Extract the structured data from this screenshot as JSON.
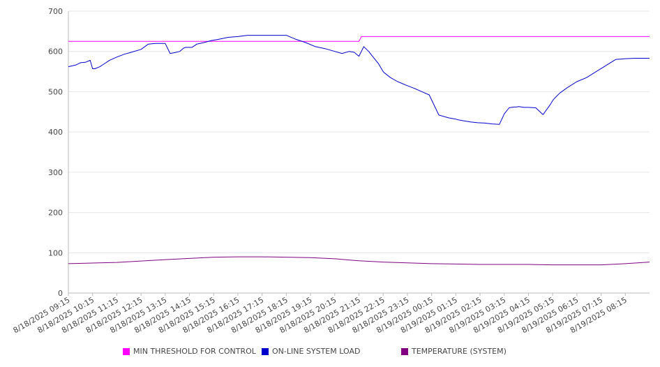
{
  "chart_data": {
    "type": "line",
    "title": "",
    "xlabel": "",
    "ylabel": "",
    "ylim": [
      0,
      700
    ],
    "y_ticks": [
      "0",
      "100",
      "200",
      "300",
      "400",
      "500",
      "600",
      "700"
    ],
    "grid": true,
    "legend_position": "bottom",
    "categories": [
      "8/18/2025 09:15",
      "8/18/2025 10:15",
      "8/18/2025 11:15",
      "8/18/2025 12:15",
      "8/18/2025 13:15",
      "8/18/2025 14:15",
      "8/18/2025 15:15",
      "8/18/2025 16:15",
      "8/18/2025 17:15",
      "8/18/2025 18:15",
      "8/18/2025 19:15",
      "8/18/2025 20:15",
      "8/18/2025 21:15",
      "8/18/2025 22:15",
      "8/18/2025 23:15",
      "8/19/2025 00:15",
      "8/19/2025 01:15",
      "8/19/2025 02:15",
      "8/19/2025 03:15",
      "8/19/2025 04:15",
      "8/19/2025 05:15",
      "8/19/2025 06:15",
      "8/19/2025 07:15",
      "8/19/2025 08:15"
    ],
    "series": [
      {
        "name": "MIN THRESHOLD FOR CONTROL",
        "color": "#ff00ff",
        "x": [
          0,
          12.0,
          12.1,
          24
        ],
        "y": [
          625,
          625,
          637,
          637
        ]
      },
      {
        "name": "ON-LINE SYSTEM LOAD",
        "color": "#0000cc",
        "x": [
          0,
          0.3,
          0.5,
          0.7,
          0.9,
          1.0,
          1.1,
          1.3,
          1.5,
          1.7,
          2.0,
          2.3,
          2.6,
          3.0,
          3.3,
          3.6,
          3.8,
          4.0,
          4.2,
          4.4,
          4.6,
          4.75,
          4.85,
          5.1,
          5.3,
          5.6,
          5.9,
          6.2,
          6.6,
          7.0,
          7.4,
          7.8,
          8.2,
          8.6,
          9.0,
          9.4,
          9.8,
          10.2,
          10.6,
          11.0,
          11.3,
          11.6,
          11.8,
          12.0,
          12.2,
          12.4,
          12.6,
          12.8,
          13.0,
          13.05,
          13.3,
          13.6,
          14.0,
          14.3,
          14.6,
          14.9,
          15.3,
          15.7,
          16.0,
          16.1,
          16.3,
          16.6,
          16.9,
          17.2,
          17.5,
          17.8,
          18.0,
          18.2,
          18.4,
          18.5,
          18.6,
          18.8,
          19.0,
          19.3,
          19.6,
          19.9,
          20.0,
          20.1,
          20.3,
          20.6,
          21.0,
          21.4,
          21.8,
          22.2,
          22.6,
          23.0,
          23.4,
          23.7,
          24.0
        ],
        "y": [
          562,
          566,
          572,
          573,
          578,
          557,
          557,
          562,
          570,
          578,
          586,
          593,
          598,
          605,
          618,
          620,
          620,
          620,
          595,
          597,
          600,
          608,
          610,
          610,
          618,
          622,
          627,
          630,
          635,
          637,
          640,
          640,
          640,
          640,
          640,
          630,
          622,
          612,
          607,
          600,
          595,
          600,
          598,
          588,
          612,
          600,
          585,
          570,
          550,
          547,
          535,
          525,
          515,
          508,
          500,
          492,
          442,
          435,
          432,
          430,
          428,
          425,
          423,
          422,
          420,
          419,
          445,
          460,
          462,
          462,
          463,
          461,
          461,
          460,
          443,
          468,
          478,
          485,
          497,
          510,
          525,
          535,
          550,
          565,
          580,
          582,
          583,
          583,
          583
        ]
      },
      {
        "name": "TEMPERATURE (SYSTEM)",
        "color": "#800080",
        "x": [
          0,
          2,
          4,
          5,
          6,
          7,
          8,
          9,
          10,
          11,
          12,
          13,
          14,
          15,
          16,
          17,
          18,
          19,
          20,
          21,
          22,
          23,
          24
        ],
        "y": [
          73,
          76,
          83,
          86,
          89,
          90,
          90,
          89,
          88,
          85,
          80,
          77,
          75,
          73,
          72,
          71,
          71,
          71,
          70,
          70,
          70,
          73,
          77
        ]
      }
    ]
  }
}
